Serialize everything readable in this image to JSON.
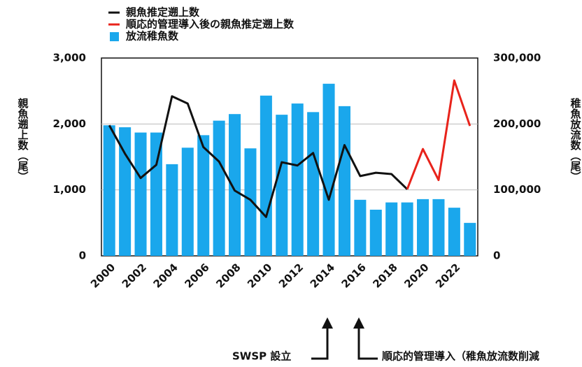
{
  "chart_data": {
    "type": "bar",
    "categories": [
      "2000",
      null,
      "2002",
      null,
      "2004",
      null,
      "2006",
      null,
      "2008",
      null,
      "2010",
      null,
      "2012",
      null,
      "2014",
      null,
      "2016",
      null,
      "2018",
      null,
      "2020",
      null,
      "2022",
      null
    ],
    "series": [
      {
        "name": "親魚推定遡上数",
        "type": "line",
        "axis": "y",
        "color": "#111111",
        "values": [
          1980,
          1550,
          1180,
          1380,
          2420,
          2310,
          1650,
          1430,
          990,
          850,
          590,
          1420,
          1370,
          1560,
          850,
          1680,
          1210,
          1260,
          1240,
          1010,
          null,
          null,
          null,
          null
        ]
      },
      {
        "name": "順応的管理導入後の親魚推定遡上数",
        "type": "line",
        "axis": "y",
        "color": "#e8231b",
        "values": [
          null,
          null,
          null,
          null,
          null,
          null,
          null,
          null,
          null,
          null,
          null,
          null,
          null,
          null,
          null,
          null,
          null,
          null,
          null,
          1010,
          1620,
          1150,
          2660,
          1970
        ]
      },
      {
        "name": "放流稚魚数",
        "type": "bar",
        "axis": "y2",
        "color": "#1aa7ec",
        "values": [
          198000,
          195000,
          187000,
          187000,
          139000,
          164000,
          183000,
          205000,
          215000,
          163000,
          243000,
          214000,
          231000,
          218000,
          261000,
          227000,
          85000,
          70000,
          81000,
          81000,
          86000,
          86000,
          73000,
          50000
        ]
      }
    ],
    "ylabel": "親魚遡上数（尾）",
    "y2label": "稚魚放流数（尾）",
    "ylim": [
      0,
      3000
    ],
    "yticks": [
      0,
      {
        "value": 1000,
        "label": "1,000"
      },
      {
        "value": 2000,
        "label": "2,000"
      },
      {
        "value": 3000,
        "label": "3,000"
      }
    ],
    "y2lim": [
      0,
      300000
    ],
    "y2ticks": [
      0,
      {
        "value": 100000,
        "label": "100,000"
      },
      {
        "value": 200000,
        "label": "200,000"
      },
      {
        "value": 300000,
        "label": "300,000"
      }
    ],
    "grid": true,
    "legend": "top",
    "annotations": [
      "SWSP 設立",
      "順応的管理導入（稚魚放流数削減"
    ]
  }
}
